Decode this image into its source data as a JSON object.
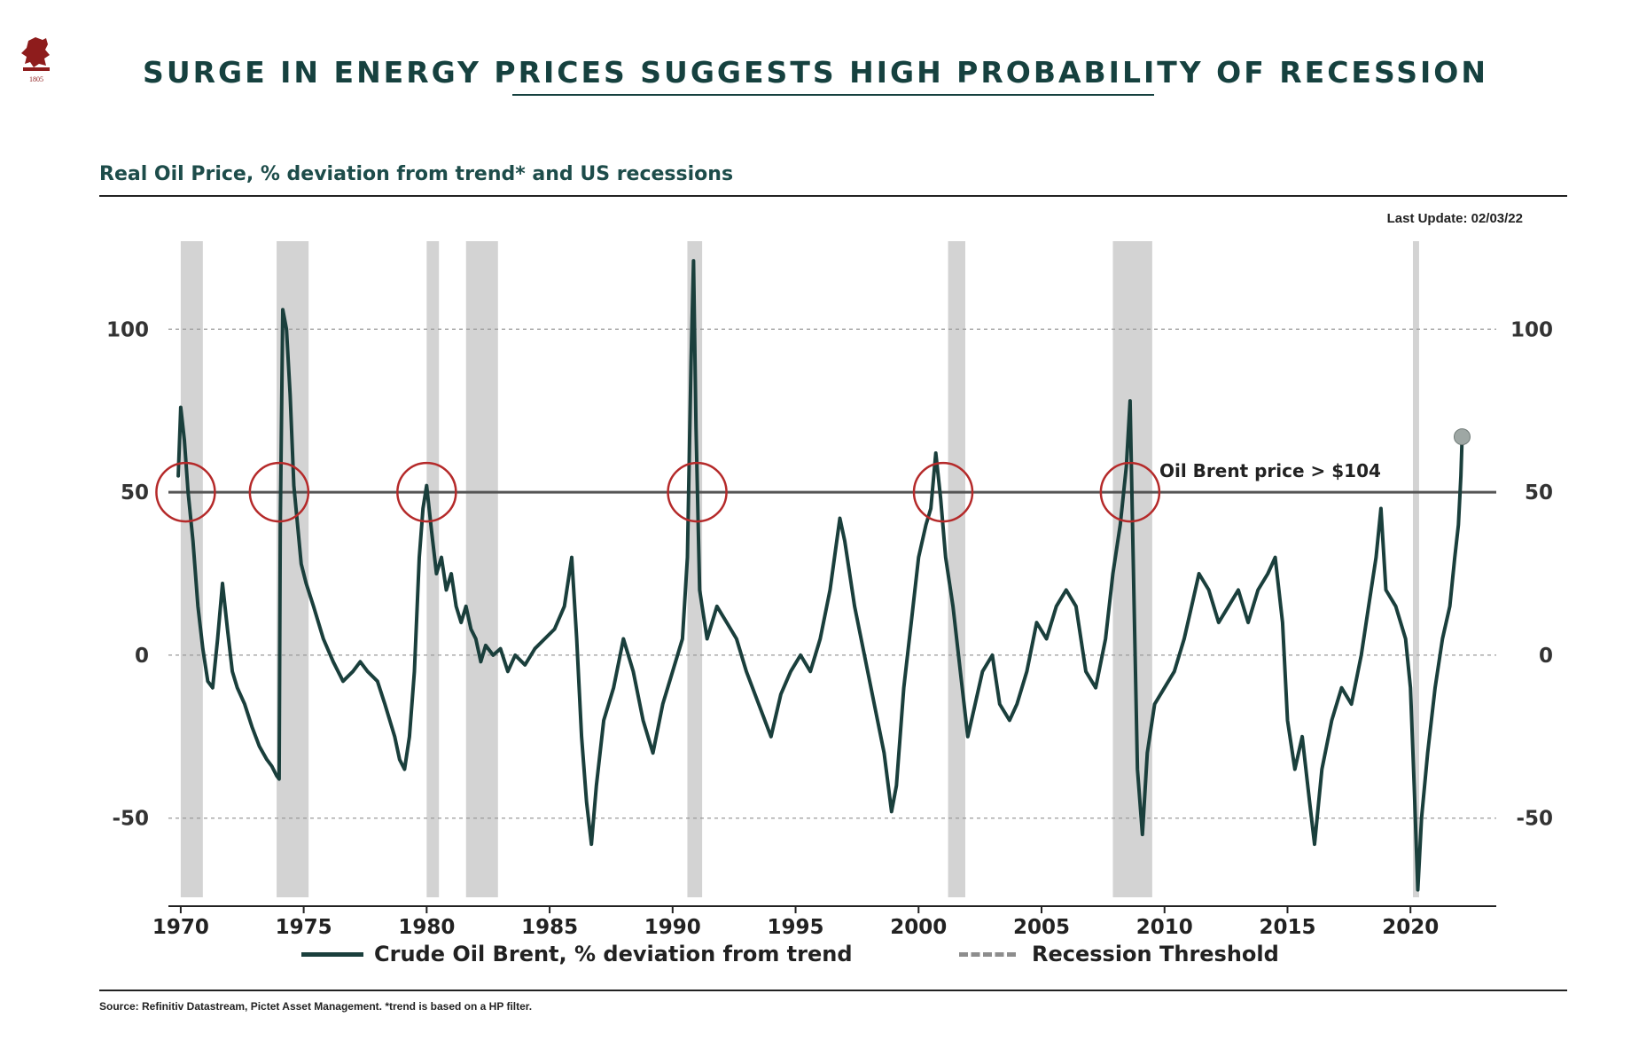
{
  "header": {
    "logo_icon": "lion-crest-logo",
    "logo_year": "1805",
    "title": "SURGE IN ENERGY PRICES SUGGESTS HIGH PROBABILITY OF RECESSION"
  },
  "subtitle": "Real Oil Price, % deviation from trend* and US recessions",
  "last_update": "Last Update: 02/03/22",
  "source": "Source: Refinitiv Datastream, Pictet Asset Management. *trend is based on a HP filter.",
  "colors": {
    "line": "#1a3f3c",
    "recession": "#d3d3d3",
    "threshold": "#555555",
    "circle": "#b52a2a",
    "title": "#16413f"
  },
  "chart_data": {
    "type": "line",
    "title": "Real Oil Price, % deviation from trend* and US recessions",
    "xlabel": "",
    "ylabel": "",
    "xlim": [
      1969.5,
      2023.2
    ],
    "ylim": [
      -77,
      127
    ],
    "x_ticks": [
      1970,
      1975,
      1980,
      1985,
      1990,
      1995,
      2000,
      2005,
      2010,
      2015,
      2020
    ],
    "y_ticks": [
      -50,
      0,
      50,
      100
    ],
    "grid": "horizontal dashed at -50, 0, 50, 100",
    "threshold": {
      "value": 50,
      "name": "Recession Threshold"
    },
    "annotation": "Oil Brent price > $104",
    "recessions": [
      [
        1970.0,
        1970.9
      ],
      [
        1973.9,
        1975.2
      ],
      [
        1980.0,
        1980.5
      ],
      [
        1981.6,
        1982.9
      ],
      [
        1990.6,
        1991.2
      ],
      [
        2001.2,
        2001.9
      ],
      [
        2007.9,
        2009.5
      ],
      [
        2020.1,
        2020.35
      ]
    ],
    "highlight_circles": [
      1970.2,
      1974.0,
      1980.0,
      1991.0,
      2001.0,
      2008.6
    ],
    "latest_point": {
      "x": 2022.1,
      "y": 67
    },
    "series": [
      {
        "name": "Crude Oil Brent, % deviation from trend",
        "points": [
          [
            1969.9,
            55
          ],
          [
            1970.0,
            76
          ],
          [
            1970.15,
            66
          ],
          [
            1970.3,
            50
          ],
          [
            1970.5,
            35
          ],
          [
            1970.7,
            15
          ],
          [
            1970.9,
            2
          ],
          [
            1971.1,
            -8
          ],
          [
            1971.3,
            -10
          ],
          [
            1971.5,
            5
          ],
          [
            1971.7,
            22
          ],
          [
            1971.9,
            8
          ],
          [
            1972.1,
            -5
          ],
          [
            1972.3,
            -10
          ],
          [
            1972.6,
            -15
          ],
          [
            1972.9,
            -22
          ],
          [
            1973.2,
            -28
          ],
          [
            1973.5,
            -32
          ],
          [
            1973.7,
            -34
          ],
          [
            1973.9,
            -37
          ],
          [
            1974.0,
            -38
          ],
          [
            1974.05,
            40
          ],
          [
            1974.15,
            106
          ],
          [
            1974.3,
            100
          ],
          [
            1974.45,
            80
          ],
          [
            1974.6,
            52
          ],
          [
            1974.75,
            40
          ],
          [
            1974.9,
            28
          ],
          [
            1975.1,
            22
          ],
          [
            1975.4,
            15
          ],
          [
            1975.8,
            5
          ],
          [
            1976.2,
            -2
          ],
          [
            1976.6,
            -8
          ],
          [
            1977.0,
            -5
          ],
          [
            1977.3,
            -2
          ],
          [
            1977.6,
            -5
          ],
          [
            1978.0,
            -8
          ],
          [
            1978.3,
            -15
          ],
          [
            1978.7,
            -25
          ],
          [
            1978.9,
            -32
          ],
          [
            1979.1,
            -35
          ],
          [
            1979.3,
            -25
          ],
          [
            1979.5,
            -5
          ],
          [
            1979.7,
            30
          ],
          [
            1979.85,
            45
          ],
          [
            1980.0,
            52
          ],
          [
            1980.2,
            38
          ],
          [
            1980.4,
            25
          ],
          [
            1980.6,
            30
          ],
          [
            1980.8,
            20
          ],
          [
            1981.0,
            25
          ],
          [
            1981.2,
            15
          ],
          [
            1981.4,
            10
          ],
          [
            1981.6,
            15
          ],
          [
            1981.8,
            8
          ],
          [
            1982.0,
            5
          ],
          [
            1982.2,
            -2
          ],
          [
            1982.4,
            3
          ],
          [
            1982.7,
            0
          ],
          [
            1983.0,
            2
          ],
          [
            1983.3,
            -5
          ],
          [
            1983.6,
            0
          ],
          [
            1984.0,
            -3
          ],
          [
            1984.4,
            2
          ],
          [
            1984.8,
            5
          ],
          [
            1985.2,
            8
          ],
          [
            1985.6,
            15
          ],
          [
            1985.9,
            30
          ],
          [
            1986.1,
            5
          ],
          [
            1986.3,
            -25
          ],
          [
            1986.5,
            -45
          ],
          [
            1986.7,
            -58
          ],
          [
            1986.9,
            -40
          ],
          [
            1987.2,
            -20
          ],
          [
            1987.6,
            -10
          ],
          [
            1988.0,
            5
          ],
          [
            1988.4,
            -5
          ],
          [
            1988.8,
            -20
          ],
          [
            1989.2,
            -30
          ],
          [
            1989.6,
            -15
          ],
          [
            1990.0,
            -5
          ],
          [
            1990.4,
            5
          ],
          [
            1990.6,
            30
          ],
          [
            1990.75,
            90
          ],
          [
            1990.85,
            121
          ],
          [
            1990.95,
            70
          ],
          [
            1991.1,
            20
          ],
          [
            1991.4,
            5
          ],
          [
            1991.8,
            15
          ],
          [
            1992.2,
            10
          ],
          [
            1992.6,
            5
          ],
          [
            1993.0,
            -5
          ],
          [
            1993.5,
            -15
          ],
          [
            1994.0,
            -25
          ],
          [
            1994.4,
            -12
          ],
          [
            1994.8,
            -5
          ],
          [
            1995.2,
            0
          ],
          [
            1995.6,
            -5
          ],
          [
            1996.0,
            5
          ],
          [
            1996.4,
            20
          ],
          [
            1996.8,
            42
          ],
          [
            1997.0,
            35
          ],
          [
            1997.4,
            15
          ],
          [
            1997.8,
            0
          ],
          [
            1998.2,
            -15
          ],
          [
            1998.6,
            -30
          ],
          [
            1998.9,
            -48
          ],
          [
            1999.1,
            -40
          ],
          [
            1999.4,
            -10
          ],
          [
            1999.7,
            10
          ],
          [
            2000.0,
            30
          ],
          [
            2000.3,
            40
          ],
          [
            2000.5,
            45
          ],
          [
            2000.7,
            62
          ],
          [
            2000.9,
            48
          ],
          [
            2001.1,
            30
          ],
          [
            2001.4,
            15
          ],
          [
            2001.7,
            -5
          ],
          [
            2002.0,
            -25
          ],
          [
            2002.3,
            -15
          ],
          [
            2002.6,
            -5
          ],
          [
            2003.0,
            0
          ],
          [
            2003.3,
            -15
          ],
          [
            2003.7,
            -20
          ],
          [
            2004.0,
            -15
          ],
          [
            2004.4,
            -5
          ],
          [
            2004.8,
            10
          ],
          [
            2005.2,
            5
          ],
          [
            2005.6,
            15
          ],
          [
            2006.0,
            20
          ],
          [
            2006.4,
            15
          ],
          [
            2006.8,
            -5
          ],
          [
            2007.2,
            -10
          ],
          [
            2007.6,
            5
          ],
          [
            2007.9,
            25
          ],
          [
            2008.2,
            40
          ],
          [
            2008.45,
            58
          ],
          [
            2008.6,
            78
          ],
          [
            2008.75,
            20
          ],
          [
            2008.9,
            -35
          ],
          [
            2009.1,
            -55
          ],
          [
            2009.3,
            -30
          ],
          [
            2009.6,
            -15
          ],
          [
            2010.0,
            -10
          ],
          [
            2010.4,
            -5
          ],
          [
            2010.8,
            5
          ],
          [
            2011.1,
            15
          ],
          [
            2011.4,
            25
          ],
          [
            2011.8,
            20
          ],
          [
            2012.2,
            10
          ],
          [
            2012.6,
            15
          ],
          [
            2013.0,
            20
          ],
          [
            2013.4,
            10
          ],
          [
            2013.8,
            20
          ],
          [
            2014.2,
            25
          ],
          [
            2014.5,
            30
          ],
          [
            2014.8,
            10
          ],
          [
            2015.0,
            -20
          ],
          [
            2015.3,
            -35
          ],
          [
            2015.6,
            -25
          ],
          [
            2015.9,
            -45
          ],
          [
            2016.1,
            -58
          ],
          [
            2016.4,
            -35
          ],
          [
            2016.8,
            -20
          ],
          [
            2017.2,
            -10
          ],
          [
            2017.6,
            -15
          ],
          [
            2018.0,
            0
          ],
          [
            2018.3,
            15
          ],
          [
            2018.6,
            30
          ],
          [
            2018.8,
            45
          ],
          [
            2019.0,
            20
          ],
          [
            2019.4,
            15
          ],
          [
            2019.8,
            5
          ],
          [
            2020.0,
            -10
          ],
          [
            2020.15,
            -40
          ],
          [
            2020.3,
            -72
          ],
          [
            2020.45,
            -50
          ],
          [
            2020.7,
            -30
          ],
          [
            2021.0,
            -10
          ],
          [
            2021.3,
            5
          ],
          [
            2021.6,
            15
          ],
          [
            2021.8,
            30
          ],
          [
            2021.95,
            40
          ],
          [
            2022.05,
            55
          ],
          [
            2022.1,
            67
          ]
        ]
      }
    ],
    "legend": [
      {
        "label": "Crude Oil Brent, % deviation from trend",
        "style": "solid"
      },
      {
        "label": "Recession Threshold",
        "style": "dashed"
      }
    ]
  }
}
